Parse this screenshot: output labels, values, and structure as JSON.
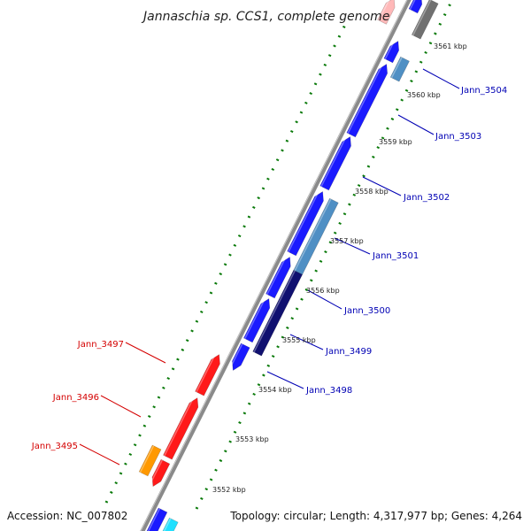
{
  "header": {
    "title": "Jannaschia sp. CCS1, complete genome"
  },
  "footer": {
    "accession": "Accession: NC_007802",
    "topology": "Topology: circular; Length: 4,317,977 bp; Genes: 4,264"
  },
  "colors": {
    "backbone": "#888888",
    "dots": "#0a7a0a",
    "forward_label": "#0000b4",
    "reverse_label": "#d40000"
  },
  "ticks": [
    {
      "label": "3552 kbp"
    },
    {
      "label": "3553 kbp"
    },
    {
      "label": "3554 kbp"
    },
    {
      "label": "3555 kbp"
    },
    {
      "label": "3556 kbp"
    },
    {
      "label": "3557 kbp"
    },
    {
      "label": "3558 kbp"
    },
    {
      "label": "3559 kbp"
    },
    {
      "label": "3560 kbp"
    },
    {
      "label": "3561 kbp"
    }
  ],
  "gene_labels": [
    {
      "text": "Jann_3504",
      "strand": "forward"
    },
    {
      "text": "Jann_3503",
      "strand": "forward"
    },
    {
      "text": "Jann_3502",
      "strand": "forward"
    },
    {
      "text": "Jann_3501",
      "strand": "forward"
    },
    {
      "text": "Jann_3500",
      "strand": "forward"
    },
    {
      "text": "Jann_3499",
      "strand": "forward"
    },
    {
      "text": "Jann_3498",
      "strand": "forward"
    },
    {
      "text": "Jann_3497",
      "strand": "reverse"
    },
    {
      "text": "Jann_3496",
      "strand": "reverse"
    },
    {
      "text": "Jann_3495",
      "strand": "reverse"
    }
  ],
  "features": [
    {
      "name": "gene-forward",
      "color": "#1a1aff"
    },
    {
      "name": "gene-reverse",
      "color": "#ff1a1a"
    },
    {
      "name": "gene-orange",
      "color": "#ff9900"
    },
    {
      "name": "gene-steelblue",
      "color": "#4f8fc4"
    },
    {
      "name": "gene-navy",
      "color": "#101070"
    },
    {
      "name": "gene-cyan",
      "color": "#20e0ff"
    },
    {
      "name": "gene-gray",
      "color": "#707070"
    },
    {
      "name": "gene-pink",
      "color": "#ffb8b8"
    }
  ]
}
